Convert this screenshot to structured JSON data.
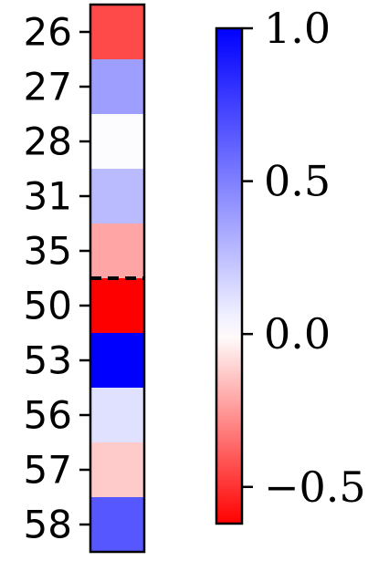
{
  "chart_data": {
    "type": "heatmap",
    "rows": [
      "26",
      "27",
      "28",
      "31",
      "35",
      "50",
      "53",
      "56",
      "57",
      "58"
    ],
    "values": [
      -0.44,
      0.38,
      0.01,
      0.27,
      -0.22,
      -0.62,
      1.0,
      0.12,
      -0.13,
      0.66
    ],
    "separator_after_row": "35",
    "separator_style": "dashed",
    "colormap": {
      "name": "bwr",
      "low_color": "#ff0000",
      "mid_color": "#ffffff",
      "high_color": "#0000ff"
    },
    "colorbar": {
      "vmin": -0.62,
      "vmax": 1.0,
      "ticks": [
        1.0,
        0.5,
        0.0,
        -0.5
      ],
      "tick_labels": [
        "1.0",
        "0.5",
        "0.0",
        "−0.5"
      ]
    }
  }
}
